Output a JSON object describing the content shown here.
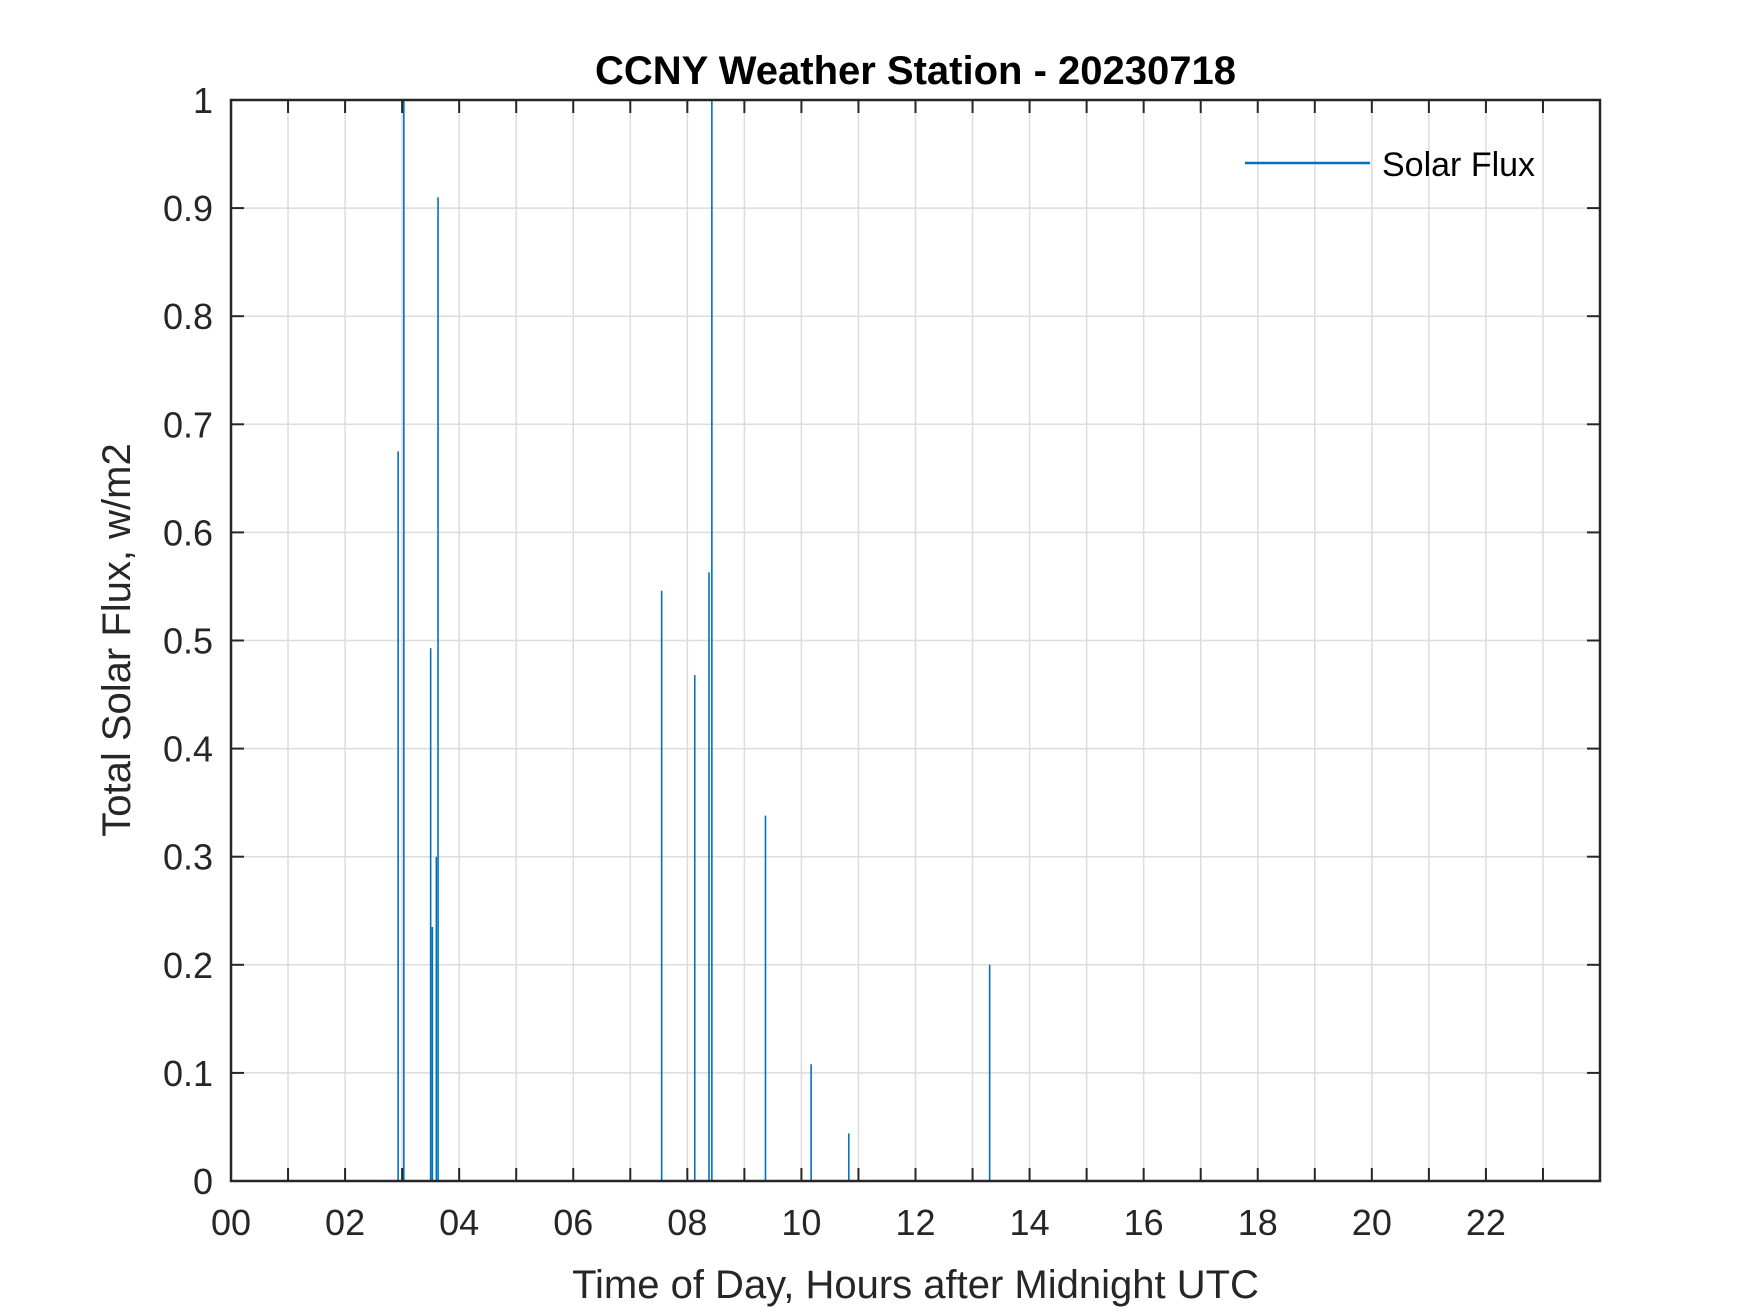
{
  "chart_data": {
    "type": "line",
    "title": "CCNY Weather Station - 20230718",
    "xlabel": "Time of Day, Hours after Midnight UTC",
    "ylabel": "Total Solar Flux, w/m2",
    "xlim": [
      0,
      24
    ],
    "ylim": [
      0,
      1
    ],
    "grid": true,
    "legend_placement": "top-right",
    "x_ticks": [
      0,
      2,
      4,
      6,
      8,
      10,
      12,
      14,
      16,
      18,
      20,
      22
    ],
    "x_tick_labels": [
      "00",
      "02",
      "04",
      "06",
      "08",
      "10",
      "12",
      "14",
      "16",
      "18",
      "20",
      "22"
    ],
    "x_minor_ticks": [
      1,
      3,
      5,
      7,
      9,
      11,
      13,
      15,
      17,
      19,
      21,
      23
    ],
    "y_ticks": [
      0,
      0.1,
      0.2,
      0.3,
      0.4,
      0.5,
      0.6,
      0.7,
      0.8,
      0.9,
      1
    ],
    "y_tick_labels": [
      "0",
      "0.1",
      "0.2",
      "0.3",
      "0.4",
      "0.5",
      "0.6",
      "0.7",
      "0.8",
      "0.9",
      "1"
    ],
    "series": [
      {
        "name": "Solar Flux",
        "color": "#0072BD",
        "spikes": [
          {
            "x": 2.93,
            "y": 0.675
          },
          {
            "x": 3.03,
            "y": 1.0
          },
          {
            "x": 3.5,
            "y": 0.493
          },
          {
            "x": 3.53,
            "y": 0.235
          },
          {
            "x": 3.6,
            "y": 0.3
          },
          {
            "x": 3.63,
            "y": 0.91
          },
          {
            "x": 7.55,
            "y": 0.546
          },
          {
            "x": 8.13,
            "y": 0.468
          },
          {
            "x": 8.38,
            "y": 0.563
          },
          {
            "x": 8.43,
            "y": 1.0
          },
          {
            "x": 9.37,
            "y": 0.338
          },
          {
            "x": 10.17,
            "y": 0.108
          },
          {
            "x": 10.83,
            "y": 0.044
          },
          {
            "x": 13.3,
            "y": 0.2
          }
        ]
      }
    ]
  },
  "colors": {
    "grid": "#dcdcdc",
    "axis": "#262626",
    "background": "#ffffff"
  }
}
